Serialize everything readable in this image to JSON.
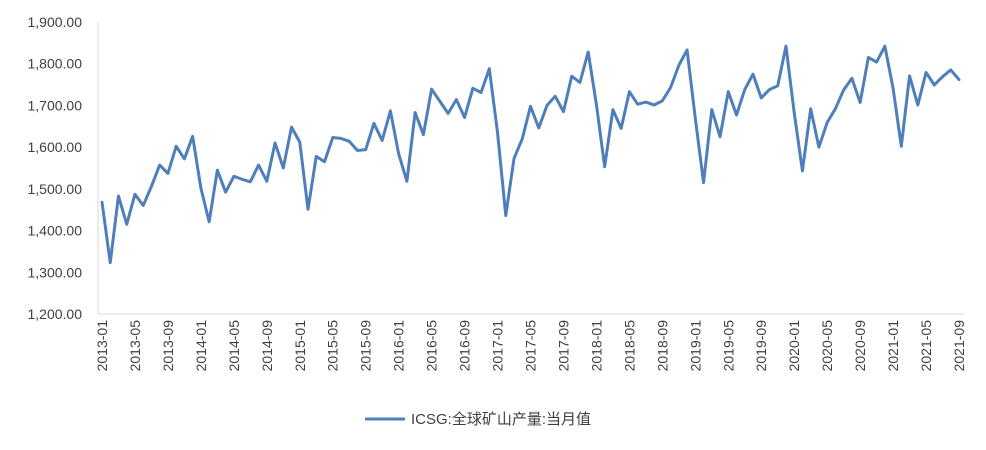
{
  "chart_data": {
    "type": "line",
    "title": "",
    "xlabel": "",
    "ylabel": "",
    "ylim": [
      1200,
      1900
    ],
    "y_ticks": [
      "1,200.00",
      "1,300.00",
      "1,400.00",
      "1,500.00",
      "1,600.00",
      "1,700.00",
      "1,800.00",
      "1,900.00"
    ],
    "x_tick_labels": [
      "2013-01",
      "2013-05",
      "2013-09",
      "2014-01",
      "2014-05",
      "2014-09",
      "2015-01",
      "2015-05",
      "2015-09",
      "2016-01",
      "2016-05",
      "2016-09",
      "2017-01",
      "2017-05",
      "2017-09",
      "2018-01",
      "2018-05",
      "2018-09",
      "2019-01",
      "2019-05",
      "2019-09",
      "2020-01",
      "2020-05",
      "2020-09",
      "2021-01",
      "2021-05",
      "2021-09"
    ],
    "grid": false,
    "legend_position": "bottom",
    "x_start": "2013-01",
    "x_end": "2021-09",
    "series": [
      {
        "name": "ICSG:全球矿山产量:当月值",
        "color": "#4f7fba",
        "values": [
          1468,
          1323,
          1483,
          1415,
          1487,
          1460,
          1506,
          1557,
          1537,
          1602,
          1572,
          1626,
          1502,
          1421,
          1545,
          1492,
          1530,
          1523,
          1517,
          1557,
          1518,
          1610,
          1550,
          1648,
          1612,
          1451,
          1578,
          1565,
          1623,
          1621,
          1614,
          1592,
          1594,
          1657,
          1616,
          1687,
          1584,
          1518,
          1683,
          1630,
          1739,
          1710,
          1681,
          1714,
          1671,
          1741,
          1731,
          1788,
          1635,
          1436,
          1573,
          1620,
          1698,
          1646,
          1700,
          1722,
          1685,
          1770,
          1755,
          1828,
          1702,
          1553,
          1690,
          1645,
          1733,
          1703,
          1708,
          1701,
          1711,
          1743,
          1796,
          1833,
          1669,
          1515,
          1690,
          1625,
          1733,
          1677,
          1738,
          1775,
          1718,
          1738,
          1747,
          1842,
          1683,
          1543,
          1692,
          1600,
          1659,
          1692,
          1737,
          1765,
          1707,
          1815,
          1804,
          1842,
          1741,
          1602,
          1771,
          1701,
          1779,
          1749,
          1769,
          1785,
          1762
        ]
      }
    ]
  }
}
